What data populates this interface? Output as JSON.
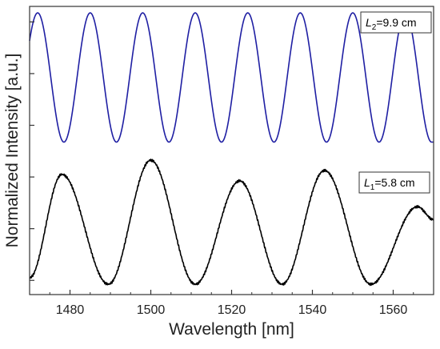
{
  "chart_data": {
    "type": "line",
    "xlabel": "Wavelength [nm]",
    "ylabel": "Normalized Intensity [a.u.]",
    "xlim": [
      1470,
      1570
    ],
    "xticks": [
      "1480",
      "1500",
      "1520",
      "1540",
      "1560"
    ],
    "ytick_count": 6,
    "y_units": "normalized (black trace 0–1, blue trace offset by +1.1)",
    "series": [
      {
        "id": "L2",
        "label_italic": "L",
        "label_sub": "2",
        "label_rest": "=9.9 cm",
        "color": "#1f1fa3",
        "offset": 1.1,
        "peaks_nm": [
          1472,
          1485,
          1498,
          1511,
          1524,
          1537,
          1550,
          1563
        ],
        "troughs_nm": [
          1478.5,
          1491.5,
          1504.5,
          1517.5,
          1530.5,
          1543.5,
          1556.5,
          1569.5
        ],
        "peak_value": 1.0,
        "trough_value": 0.0
      },
      {
        "id": "L1",
        "label_italic": "L",
        "label_sub": "1",
        "label_rest": "=5.8 cm",
        "color": "#000000",
        "offset": 0,
        "x": [
          1470,
          1478,
          1489.5,
          1500,
          1511,
          1522,
          1532.5,
          1543,
          1554.5,
          1566,
          1570
        ],
        "y": [
          0.05,
          0.85,
          0.0,
          0.96,
          0.0,
          0.8,
          0.0,
          0.88,
          0.0,
          0.6,
          0.5
        ]
      }
    ]
  }
}
